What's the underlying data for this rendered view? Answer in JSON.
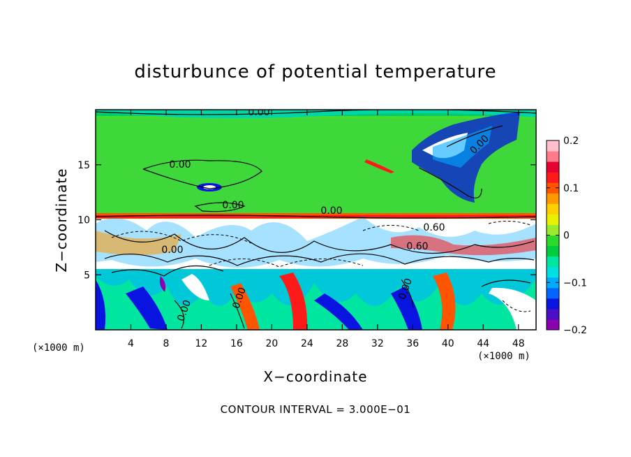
{
  "chart_data": {
    "type": "heatmap",
    "title": "disturbunce of potential temperature",
    "xlabel": "X−coordinate",
    "ylabel": "Z−coordinate",
    "x_unit": "(×1000 m)",
    "xlim": [
      0,
      50
    ],
    "ylim": [
      0,
      20
    ],
    "x_ticks": [
      4,
      8,
      12,
      16,
      20,
      24,
      28,
      32,
      36,
      40,
      44,
      48
    ],
    "x_tick_labels": [
      "4",
      "8",
      "12",
      "16",
      "20",
      "24",
      "28",
      "32",
      "36",
      "40",
      "44",
      "48"
    ],
    "y_ticks": [
      5,
      10,
      15
    ],
    "y_tick_labels": [
      "5",
      "10",
      "15"
    ],
    "colorbar": {
      "range": [
        -0.2,
        0.2
      ],
      "ticks": [
        0.2,
        0.1,
        0,
        -0.1,
        -0.2
      ],
      "tick_labels": [
        "0.2",
        "0.1",
        "0",
        "−0.1",
        "−0.2"
      ],
      "colors": [
        "#8b00b0",
        "#4b0fc8",
        "#0a14e0",
        "#0066ff",
        "#00aaff",
        "#00e0e0",
        "#00e6a0",
        "#00cc3c",
        "#2bd92b",
        "#9bea2c",
        "#e8f000",
        "#ffd000",
        "#ff9900",
        "#ff5500",
        "#ff1a1a",
        "#e60033",
        "#ff7a8a",
        "#ffc0cc"
      ]
    },
    "contour_labels": [
      "0.00",
      "0.00",
      "0.00",
      "0.00",
      "0.00",
      "0.60",
      "0.60",
      "0.00",
      "0.00",
      "0.00",
      "0.00"
    ],
    "footnote": "CONTOUR INTERVAL = 3.000E−01"
  }
}
